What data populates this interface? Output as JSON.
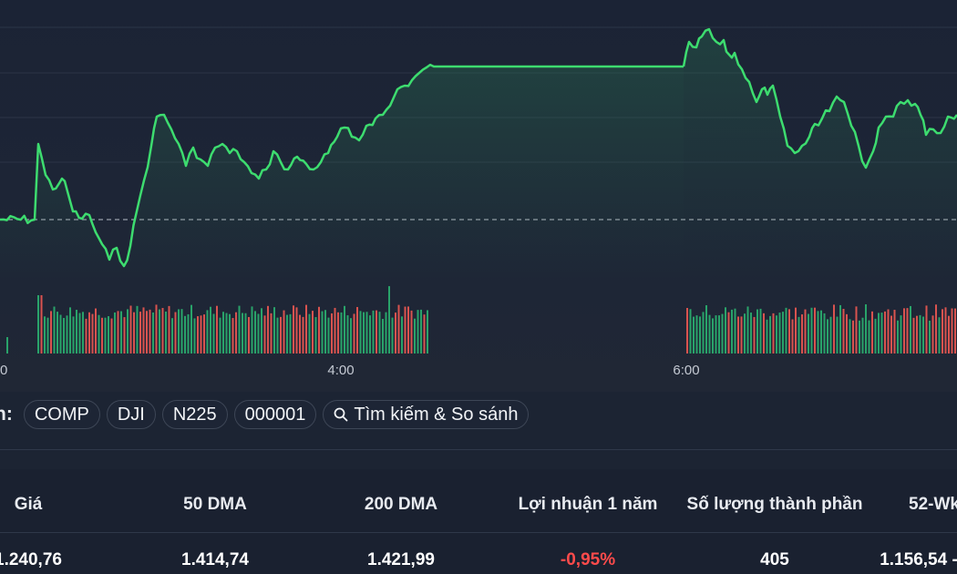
{
  "chart": {
    "time_labels": [
      "0",
      "4:00",
      "6:00"
    ],
    "line_color": "#3ddc6f",
    "up_color": "#29a36a",
    "down_color": "#d9534f"
  },
  "compare": {
    "label": "n:",
    "chips": [
      "COMP",
      "DJI",
      "N225",
      "000001"
    ],
    "search_label": "Tìm kiếm & So sánh"
  },
  "stats": {
    "headers": {
      "price": "Giá",
      "dma50": "50 DMA",
      "dma200": "200 DMA",
      "return_1y": "Lợi nhuận 1 năm",
      "constituents": "Số lượng thành phần",
      "week52": "52-Wk"
    },
    "values": {
      "price": "1.240,76",
      "dma50": "1.414,74",
      "dma200": "1.421,99",
      "return_1y": "-0,95%",
      "constituents": "405",
      "week52": "1.156,54 -"
    }
  }
}
